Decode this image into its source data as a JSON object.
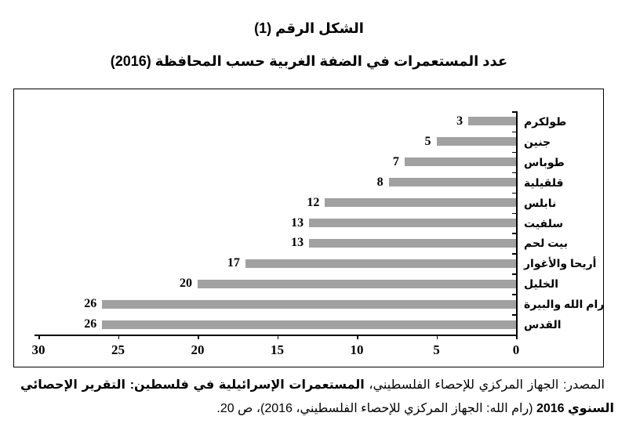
{
  "figure": {
    "title": "الشكل الرقم (1)",
    "subtitle": "عدد المستعمرات في الضفة الغربية حسب المحافظة (2016)"
  },
  "chart_data": {
    "type": "bar",
    "orientation": "horizontal",
    "value_axis_reversed_rtl": true,
    "title": "عدد المستعمرات في الضفة الغربية حسب المحافظة (2016)",
    "categories": [
      "طولكرم",
      "جنين",
      "طوباس",
      "قلقيلية",
      "نابلس",
      "سلفيت",
      "بيت لحم",
      "أريحا والأغوار",
      "الخليل",
      "رام الله والبيرة",
      "القدس"
    ],
    "values": [
      3,
      5,
      7,
      8,
      12,
      13,
      13,
      17,
      20,
      26,
      26
    ],
    "data_labels": [
      3,
      5,
      7,
      8,
      12,
      13,
      13,
      17,
      20,
      26,
      26
    ],
    "xlabel": "",
    "ylabel": "",
    "xlim": [
      0,
      30
    ],
    "x_ticks": [
      30,
      25,
      20,
      15,
      10,
      5,
      0
    ],
    "grid": "off",
    "legend": "none",
    "bar_color": "#A1A1A1",
    "axis_color": "#000000",
    "label_color": "#000000"
  },
  "source": {
    "prefix": "المصدر: الجهاز المركزي للإحصاء الفلسطيني، ",
    "book_title": "المستعمرات الإسرائيلية في فلسطين: التقرير الإحصائي السنوي 2016 ",
    "suffix": "(رام الله: الجهاز المركزي للإحصاء الفلسطيني، 2016)، ص 20."
  }
}
